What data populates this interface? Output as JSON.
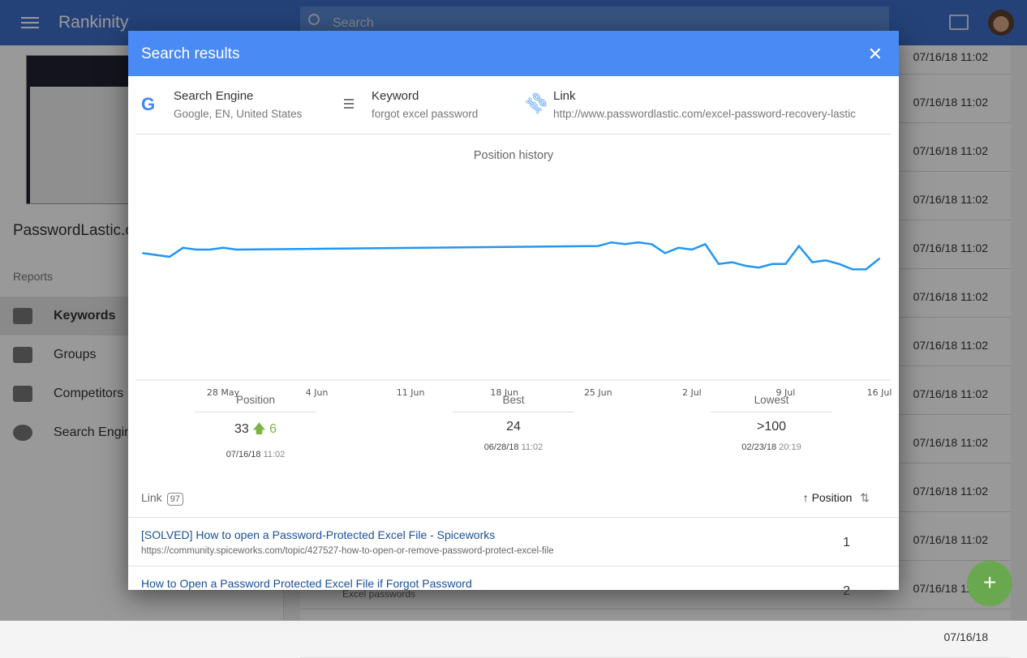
{
  "app": {
    "title": "Rankinity",
    "search_placeholder": "Search",
    "icons": [
      "menu-icon",
      "search-icon",
      "folder-icon",
      "avatar"
    ]
  },
  "sidebar": {
    "site": "PasswordLastic.c",
    "section": "Reports",
    "items": [
      {
        "label": "Keywords",
        "icon": "keywords-icon",
        "active": true
      },
      {
        "label": "Groups",
        "icon": "tag-icon"
      },
      {
        "label": "Competitors",
        "icon": "chess-icon"
      },
      {
        "label": "Search Engin",
        "icon": "search-engine-icon"
      }
    ]
  },
  "background": {
    "dates": [
      "07/16/18 11:02",
      "07/16/18 11:02",
      "07/16/18 11:02",
      "07/16/18 11:02",
      "07/16/18 11:02",
      "07/16/18 11:02",
      "07/16/18 11:02",
      "07/16/18 11:02",
      "07/16/18 11:02",
      "07/16/18 11:02",
      "07/16/18 11:02",
      "07/16/18 11:02",
      "07/16/18"
    ],
    "keyword_fragment": "Excel passwords",
    "fab": "+"
  },
  "modal": {
    "title": "Search results",
    "info": {
      "engine_label": "Search Engine",
      "engine_value": "Google, EN, United States",
      "keyword_label": "Keyword",
      "keyword_value": "forgot excel password",
      "link_label": "Link",
      "link_value": "http://www.passwordlastic.com/excel-password-recovery-lastic"
    },
    "stats": {
      "position": {
        "label": "Position",
        "value": "33",
        "change": "6",
        "date": "07/16/18",
        "time": "11:02"
      },
      "best": {
        "label": "Best",
        "value": "24",
        "date": "06/28/18",
        "time": "11:02"
      },
      "lowest": {
        "label": "Lowest",
        "value": ">100",
        "date": "02/23/18",
        "time": "20:19"
      }
    },
    "links": {
      "label": "Link",
      "count": "97",
      "sort_label": "Position",
      "rows": [
        {
          "title": "[SOLVED] How to open a Password-Protected Excel File - Spiceworks",
          "url": "https://community.spiceworks.com/topic/427527-how-to-open-or-remove-password-protect-excel-file",
          "position": "1"
        },
        {
          "title": "How to Open a Password Protected Excel File if Forgot Password",
          "url": "",
          "position": "2"
        }
      ]
    }
  },
  "chart_data": {
    "type": "line",
    "title": "Position history",
    "color": "#2196f3",
    "y_reversed": true,
    "ylim": [
      1,
      100
    ],
    "grid": false,
    "x_ticks": [
      "28 May",
      "4 Jun",
      "11 Jun",
      "18 Jun",
      "25 Jun",
      "2 Jul",
      "9 Jul",
      "16 Jul"
    ],
    "x": [
      "2018-05-22",
      "2018-05-24",
      "2018-05-25",
      "2018-05-26",
      "2018-05-27",
      "2018-05-28",
      "2018-05-29",
      "2018-06-25",
      "2018-06-26",
      "2018-06-27",
      "2018-06-28",
      "2018-06-29",
      "2018-06-30",
      "2018-07-01",
      "2018-07-02",
      "2018-07-03",
      "2018-07-04",
      "2018-07-05",
      "2018-07-06",
      "2018-07-07",
      "2018-07-08",
      "2018-07-09",
      "2018-07-10",
      "2018-07-11",
      "2018-07-12",
      "2018-07-13",
      "2018-07-14",
      "2018-07-15",
      "2018-07-16"
    ],
    "values": [
      30,
      32,
      27,
      28,
      28,
      27,
      28,
      26,
      24,
      25,
      24,
      25,
      30,
      27,
      28,
      25,
      36,
      35,
      37,
      38,
      36,
      36,
      26,
      35,
      34,
      36,
      39,
      39,
      33
    ]
  }
}
